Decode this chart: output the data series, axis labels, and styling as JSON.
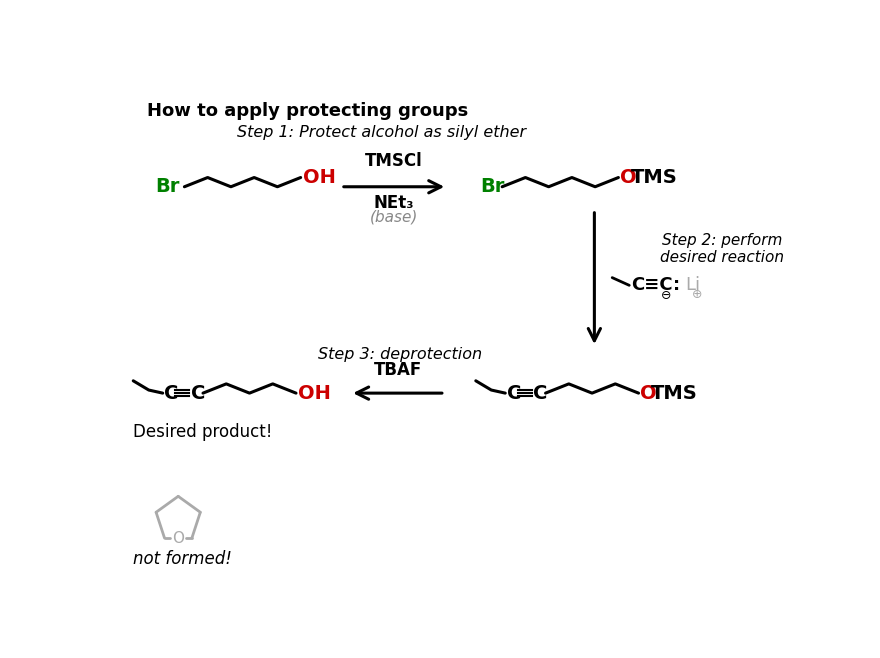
{
  "title": "How to apply protecting groups",
  "step1_label": "Step 1: Protect alcohol as silyl ether",
  "step2_label": "Step 2: perform\ndesired reaction",
  "step3_label": "Step 3: deprotection",
  "reagent1_line1": "TMSCl",
  "reagent1_line2": "NEt₃",
  "reagent1_line3": "(base)",
  "reagent2": "TBAF",
  "desired_product": "Desired product!",
  "not_formed": "not formed!",
  "green": "#008000",
  "red": "#cc0000",
  "black": "#000000",
  "gray": "#888888",
  "light_gray": "#aaaaaa",
  "ring_gray": "#aaaaaa",
  "bg": "#ffffff"
}
